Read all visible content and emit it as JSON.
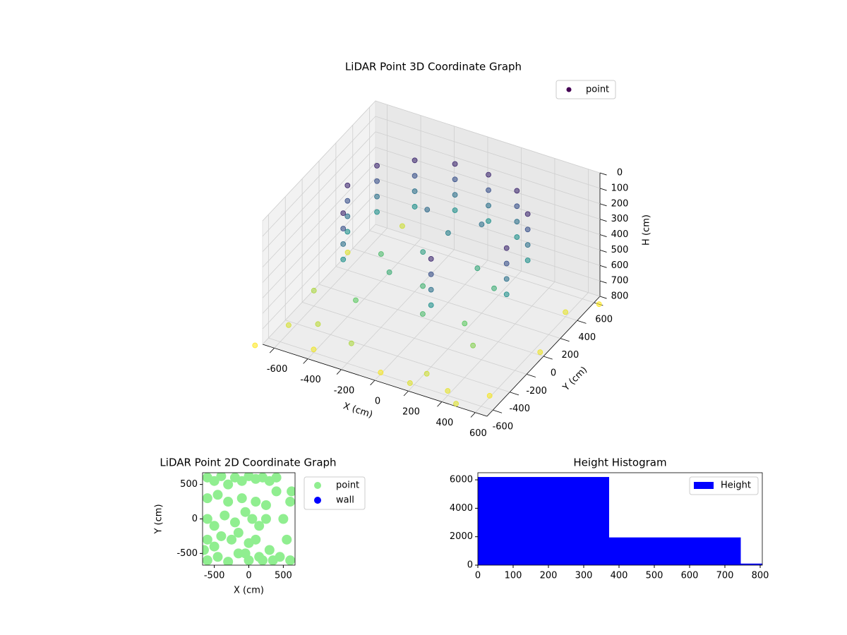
{
  "chart_data": [
    {
      "type": "scatter3d",
      "title": "LiDAR Point 3D Coordinate Graph",
      "xlabel": "X (cm)",
      "ylabel": "Y (cm)",
      "zlabel": "H (cm)",
      "xlim": [
        -670,
        670
      ],
      "ylim": [
        -670,
        670
      ],
      "zlim": [
        0,
        800
      ],
      "zinvert": true,
      "xticks": [
        -600,
        -400,
        -200,
        0,
        200,
        400,
        600
      ],
      "yticks": [
        -600,
        -400,
        -200,
        0,
        200,
        400,
        600
      ],
      "zticks": [
        0,
        100,
        200,
        300,
        400,
        500,
        600,
        700,
        800
      ],
      "cmap": "viridis",
      "grid": true,
      "legend": "upper right",
      "series": [
        {
          "name": "point",
          "color": "#440154",
          "x": [
            -300,
            -300,
            -300,
            -300,
            -100,
            -100,
            -100,
            -100,
            100,
            100,
            100,
            100,
            300,
            300,
            300,
            300,
            450,
            450,
            450,
            450,
            -450,
            -450,
            -450,
            -450,
            -500,
            -500,
            -500,
            -500,
            -400,
            -400,
            -400,
            -400,
            500,
            500,
            500,
            500,
            200,
            200,
            200,
            200,
            -600,
            -400,
            -200,
            0,
            200,
            400,
            600,
            650,
            600,
            -650,
            -600,
            -300,
            100,
            300,
            -100,
            200,
            -200,
            0,
            350,
            -350,
            700,
            -700,
            500,
            -500,
            150,
            -150,
            0,
            400,
            -450,
            250
          ],
          "y": [
            400,
            400,
            400,
            400,
            480,
            480,
            480,
            480,
            480,
            480,
            480,
            480,
            420,
            420,
            420,
            420,
            250,
            250,
            250,
            250,
            250,
            250,
            250,
            250,
            0,
            0,
            0,
            0,
            -250,
            -250,
            -250,
            -250,
            -100,
            -100,
            -100,
            -100,
            -400,
            -400,
            -400,
            -400,
            -500,
            -600,
            -550,
            -600,
            -650,
            -600,
            -500,
            0,
            400,
            300,
            -200,
            -300,
            -300,
            -200,
            100,
            150,
            -100,
            -100,
            50,
            100,
            600,
            -700,
            -700,
            650,
            300,
            250,
            200,
            -300,
            -450,
            -550
          ],
          "z": [
            100,
            200,
            300,
            400,
            100,
            200,
            300,
            400,
            100,
            200,
            300,
            400,
            100,
            200,
            300,
            400,
            100,
            200,
            300,
            400,
            100,
            200,
            300,
            400,
            100,
            200,
            300,
            400,
            100,
            200,
            300,
            400,
            100,
            200,
            300,
            400,
            100,
            200,
            300,
            400,
            750,
            780,
            700,
            790,
            760,
            770,
            790,
            780,
            770,
            760,
            700,
            600,
            550,
            600,
            450,
            480,
            500,
            520,
            500,
            550,
            800,
            800,
            760,
            740,
            300,
            280,
            350,
            650,
            720,
            740
          ]
        }
      ]
    },
    {
      "type": "scatter",
      "title": "LiDAR Point 2D Coordinate Graph",
      "xlabel": "X (cm)",
      "ylabel": "Y (cm)",
      "xlim": [
        -670,
        670
      ],
      "ylim": [
        -670,
        670
      ],
      "xticks": [
        -500,
        0,
        500
      ],
      "yticks": [
        -500,
        0,
        500
      ],
      "legend": "outside right",
      "series": [
        {
          "name": "point",
          "color": "#90ee90",
          "x": [
            -600,
            -500,
            -400,
            -300,
            -200,
            -100,
            0,
            100,
            200,
            300,
            400,
            -600,
            -450,
            -300,
            -100,
            100,
            250,
            -600,
            -500,
            -350,
            -200,
            -50,
            50,
            150,
            250,
            -600,
            -500,
            -400,
            -250,
            -150,
            0,
            100,
            -600,
            -450,
            -300,
            -150,
            0,
            150,
            300,
            450,
            600,
            550,
            500,
            600,
            620,
            400,
            -50,
            200,
            350,
            -650
          ],
          "y": [
            600,
            550,
            620,
            500,
            600,
            550,
            620,
            580,
            600,
            550,
            600,
            300,
            350,
            250,
            300,
            250,
            200,
            0,
            -100,
            50,
            -50,
            100,
            0,
            -100,
            0,
            -300,
            -400,
            -250,
            -300,
            -200,
            -350,
            -300,
            -600,
            -550,
            -620,
            -500,
            -600,
            -550,
            -450,
            -550,
            -600,
            -300,
            0,
            250,
            400,
            400,
            -500,
            -600,
            -600,
            -450
          ]
        },
        {
          "name": "wall",
          "color": "#0000ff",
          "x": [],
          "y": []
        }
      ]
    },
    {
      "type": "histogram",
      "title": "Height Histogram",
      "bins": [
        0,
        372,
        745,
        806
      ],
      "xlim": [
        0,
        806
      ],
      "ylim": [
        0,
        6500
      ],
      "xticks": [
        0,
        100,
        200,
        300,
        400,
        500,
        600,
        700,
        800
      ],
      "yticks": [
        0,
        2000,
        4000,
        6000
      ],
      "legend": "upper right",
      "series": [
        {
          "name": "Height",
          "color": "#0000ff",
          "values": [
            6200,
            1950,
            110
          ]
        }
      ]
    }
  ]
}
